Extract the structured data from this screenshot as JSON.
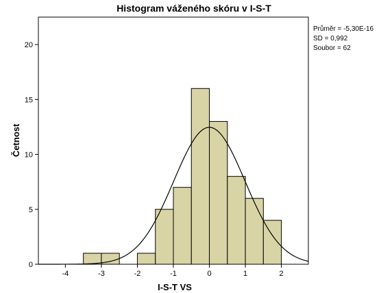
{
  "chart_data": {
    "type": "bar",
    "title": "Histogram váženého skóru v I-S-T",
    "xlabel": "I-S-T  VS",
    "ylabel": "Četnost",
    "xlim": [
      -4.75,
      2.75
    ],
    "ylim": [
      0,
      22.5
    ],
    "x_ticks": [
      -4,
      -3,
      -2,
      -1,
      0,
      1,
      2
    ],
    "y_ticks": [
      0,
      5,
      10,
      15,
      20
    ],
    "bin_width": 0.5,
    "bins": [
      {
        "start": -3.5,
        "count": 1
      },
      {
        "start": -3.0,
        "count": 1
      },
      {
        "start": -2.0,
        "count": 1
      },
      {
        "start": -1.5,
        "count": 5
      },
      {
        "start": -1.0,
        "count": 7
      },
      {
        "start": -0.5,
        "count": 16
      },
      {
        "start": 0.0,
        "count": 13
      },
      {
        "start": 0.5,
        "count": 8
      },
      {
        "start": 1.0,
        "count": 6
      },
      {
        "start": 1.5,
        "count": 4
      }
    ],
    "normal_curve": {
      "mean": 0,
      "sd": 0.992,
      "n": 62
    },
    "bar_color": "#d9d4a6",
    "bar_edge_color": "#000000",
    "plot_background": "#ffffff",
    "grid": false,
    "stats": {
      "mean_text": "Průměr = -5,30E-16",
      "sd_text": "SD = 0,992",
      "n_text": "Soubor = 62"
    }
  }
}
